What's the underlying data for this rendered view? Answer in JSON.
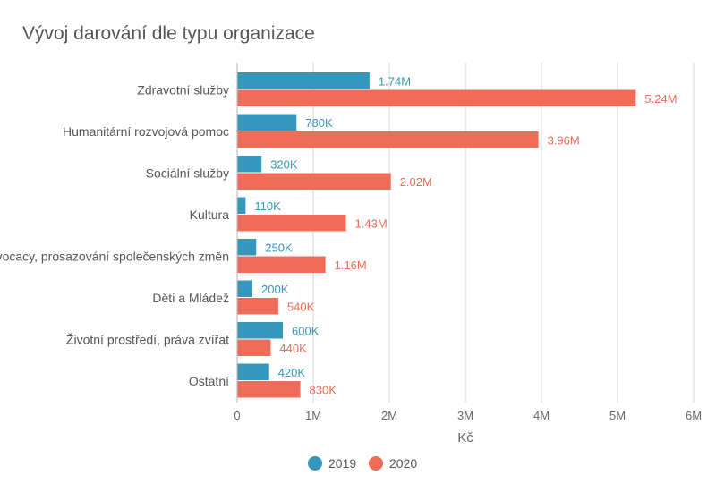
{
  "chart_data": {
    "type": "bar",
    "orientation": "horizontal",
    "title": "Vývoj darování dle typu organizace",
    "xlabel": "Kč",
    "ylabel": "",
    "xlim": [
      0,
      6000000
    ],
    "x_ticks": [
      0,
      1000000,
      2000000,
      3000000,
      4000000,
      5000000,
      6000000
    ],
    "x_tick_labels": [
      "0",
      "1M",
      "2M",
      "3M",
      "4M",
      "5M",
      "6M"
    ],
    "grid": "vertical",
    "legend_position": "bottom-center",
    "categories": [
      "Zdravotní služby",
      "Humanitární rozvojová pomoc",
      "Sociální služby",
      "Kultura",
      "Advocacy, prosazování společenských změn",
      "Děti a Mládež",
      "Životní prostředí, práva zvířat",
      "Ostatní"
    ],
    "series": [
      {
        "name": "2019",
        "color": "#3497bb",
        "values": [
          1740000,
          780000,
          320000,
          110000,
          250000,
          200000,
          600000,
          420000
        ],
        "labels": [
          "1.74M",
          "780K",
          "320K",
          "110K",
          "250K",
          "200K",
          "600K",
          "420K"
        ]
      },
      {
        "name": "2020",
        "color": "#ef6c58",
        "values": [
          5240000,
          3960000,
          2020000,
          1430000,
          1160000,
          540000,
          440000,
          830000
        ],
        "labels": [
          "5.24M",
          "3.96M",
          "2.02M",
          "1.43M",
          "1.16M",
          "540K",
          "440K",
          "830K"
        ]
      }
    ]
  }
}
